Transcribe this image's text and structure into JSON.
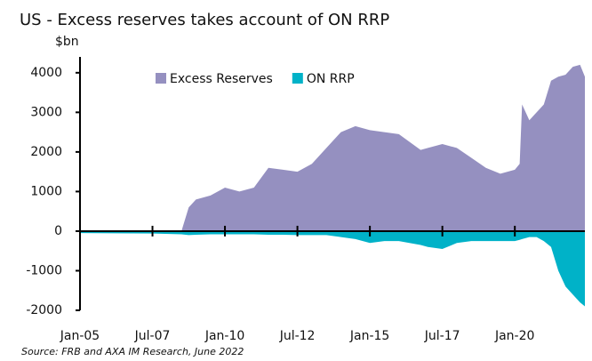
{
  "chart_data": {
    "type": "area",
    "title": "US - Excess reserves takes account of ON RRP",
    "y_label": "$bn",
    "source": "Source: FRB and AXA IM Research, June 2022",
    "x": [
      "Jan-05",
      "Jul-07",
      "Jul-08",
      "Oct-08",
      "Jan-09",
      "Jul-09",
      "Jan-10",
      "Jul-10",
      "Jan-11",
      "Jul-11",
      "Jan-12",
      "Jul-12",
      "Jan-13",
      "Jul-13",
      "Jan-14",
      "Jul-14",
      "Jan-15",
      "Jul-15",
      "Jan-16",
      "Oct-16",
      "Jan-17",
      "Jul-17",
      "Jan-18",
      "Jul-18",
      "Jan-19",
      "Jul-19",
      "Jan-20",
      "Mar-20",
      "Apr-20",
      "Jul-20",
      "Oct-20",
      "Jan-21",
      "Apr-21",
      "Jul-21",
      "Oct-21",
      "Jan-22",
      "Apr-22",
      "Jun-22"
    ],
    "series": [
      {
        "name": "Excess Reserves",
        "color": "#9590c0",
        "values": [
          10,
          10,
          0,
          600,
          800,
          900,
          1100,
          1000,
          1100,
          1600,
          1550,
          1500,
          1700,
          2100,
          2500,
          2650,
          2550,
          2500,
          2450,
          2050,
          2100,
          2200,
          2100,
          1850,
          1600,
          1450,
          1550,
          1700,
          3200,
          2800,
          3000,
          3200,
          3800,
          3900,
          3950,
          4150,
          4200,
          3900
        ]
      },
      {
        "name": "ON RRP",
        "color": "#00b2c8",
        "values": [
          -50,
          -60,
          -80,
          -100,
          -90,
          -80,
          -80,
          -80,
          -80,
          -90,
          -90,
          -100,
          -100,
          -100,
          -150,
          -200,
          -300,
          -250,
          -250,
          -350,
          -400,
          -450,
          -300,
          -250,
          -250,
          -250,
          -250,
          -220,
          -200,
          -150,
          -150,
          -250,
          -400,
          -1000,
          -1400,
          -1600,
          -1800,
          -1900
        ]
      }
    ],
    "xlim": [
      "Jan-05",
      "Jun-22"
    ],
    "xticks": [
      "Jan-05",
      "Jul-07",
      "Jan-10",
      "Jul-12",
      "Jan-15",
      "Jul-17",
      "Jan-20"
    ],
    "ylim": [
      -2000,
      4400
    ],
    "yticks": [
      -2000,
      -1000,
      0,
      1000,
      2000,
      3000,
      4000
    ],
    "legend": "top"
  }
}
